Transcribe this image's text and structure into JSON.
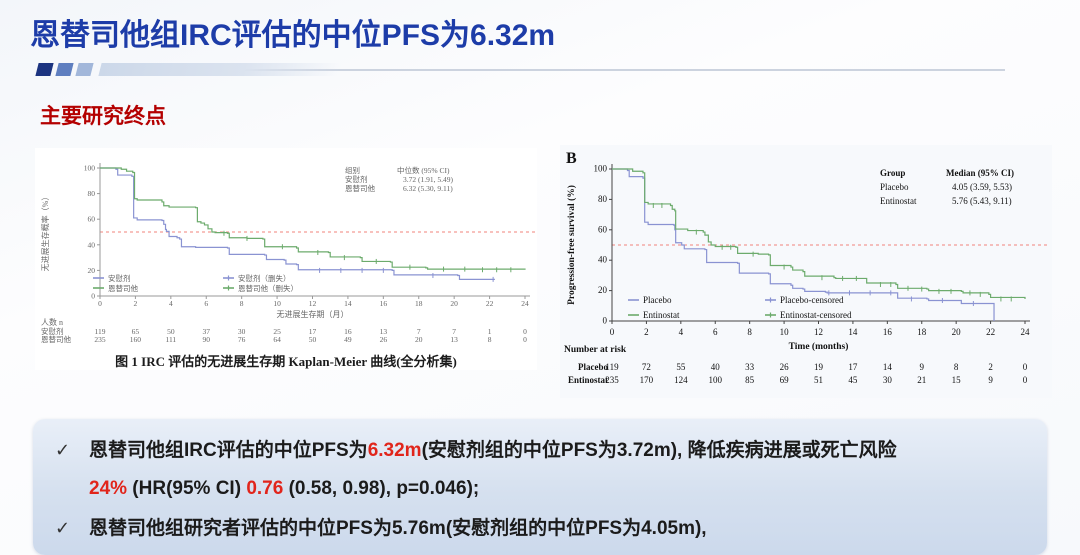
{
  "slide": {
    "title": "恩替司他组IRC评估的中位PFS为6.32m",
    "section_heading": "主要研究终点"
  },
  "colors": {
    "title_blue": "#1d3ca8",
    "heading_red": "#b40000",
    "highlight_red": "#e1251b",
    "decor_dark": "#1c3480",
    "decor_mid": "#5f7fc0",
    "decor_light": "#a2b7da",
    "placebo_blue": "#8a93d2",
    "entinostat_green": "#6cab6c",
    "median_dashed_red": "#f2837b"
  },
  "chart_data": [
    {
      "type": "line",
      "subtype": "kaplan-meier",
      "panel_label": "",
      "caption": "图 1 IRC 评估的无进展生存期 Kaplan-Meier 曲线(全分析集)",
      "xlabel": "无进展生存期（月）",
      "ylabel": "无进展生存概率（%）",
      "xlim": [
        0,
        24
      ],
      "ylim": [
        0,
        100
      ],
      "xticks": [
        0,
        2,
        4,
        6,
        8,
        10,
        12,
        14,
        16,
        18,
        20,
        22,
        24
      ],
      "yticks": [
        0,
        20,
        40,
        60,
        80,
        100
      ],
      "median_line_y": 50,
      "legend_table": {
        "header": [
          "组别",
          "中位数 (95% CI)"
        ],
        "rows": [
          [
            "安慰剂",
            "3.72 (1.91, 5.49)"
          ],
          [
            "恩替司他",
            "6.32 (5.30, 9.11)"
          ]
        ]
      },
      "legend_items": [
        "安慰剂",
        "恩替司他",
        "安慰剂（删失）",
        "恩替司他（删失）"
      ],
      "series": [
        {
          "name": "安慰剂",
          "color": "#8a93d2",
          "steps": [
            [
              0,
              100
            ],
            [
              0.9,
              99
            ],
            [
              1,
              94.5
            ],
            [
              1.8,
              93.5
            ],
            [
              1.9,
              61
            ],
            [
              2.1,
              59.5
            ],
            [
              3.5,
              59
            ],
            [
              3.6,
              56
            ],
            [
              3.7,
              52
            ],
            [
              3.75,
              50.5
            ],
            [
              3.9,
              46.5
            ],
            [
              4.35,
              45.5
            ],
            [
              4.5,
              44.5
            ],
            [
              4.6,
              38.5
            ],
            [
              5.4,
              38
            ],
            [
              7.2,
              37.5
            ],
            [
              7.3,
              32.5
            ],
            [
              9.3,
              32
            ],
            [
              9.4,
              28.5
            ],
            [
              10.4,
              28
            ],
            [
              10.5,
              25
            ],
            [
              11.1,
              24.5
            ],
            [
              11.2,
              20.5
            ],
            [
              16.5,
              20
            ],
            [
              16.6,
              16.5
            ],
            [
              20.2,
              16
            ],
            [
              20.3,
              13
            ],
            [
              22.3,
              13
            ]
          ],
          "censors": [
            [
              12.4,
              20
            ],
            [
              13.6,
              20
            ],
            [
              14.8,
              20
            ],
            [
              16,
              20
            ],
            [
              18.8,
              16
            ],
            [
              22.2,
              13
            ]
          ]
        },
        {
          "name": "恩替司他",
          "color": "#6cab6c",
          "steps": [
            [
              0,
              100
            ],
            [
              1.2,
              99
            ],
            [
              1.5,
              97.5
            ],
            [
              1.85,
              96.5
            ],
            [
              1.95,
              76
            ],
            [
              2.1,
              75
            ],
            [
              3.5,
              73.5
            ],
            [
              3.6,
              70.5
            ],
            [
              3.9,
              69.5
            ],
            [
              5.4,
              69
            ],
            [
              5.5,
              58
            ],
            [
              5.7,
              57
            ],
            [
              5.9,
              55.5
            ],
            [
              6.1,
              52.5
            ],
            [
              6.32,
              50
            ],
            [
              6.5,
              49.5
            ],
            [
              7.2,
              49
            ],
            [
              7.3,
              45.5
            ],
            [
              8.3,
              45
            ],
            [
              9.2,
              44.5
            ],
            [
              9.3,
              38.5
            ],
            [
              11.1,
              37.5
            ],
            [
              11.2,
              34.5
            ],
            [
              12.9,
              34
            ],
            [
              13,
              30.5
            ],
            [
              14.7,
              30
            ],
            [
              14.8,
              27
            ],
            [
              16.4,
              26.5
            ],
            [
              16.5,
              22.5
            ],
            [
              18.4,
              22
            ],
            [
              18.5,
              21
            ],
            [
              24,
              20.5
            ]
          ],
          "censors": [
            [
              7,
              49
            ],
            [
              8.3,
              45
            ],
            [
              10.3,
              38.5
            ],
            [
              12.3,
              34
            ],
            [
              13.8,
              30
            ],
            [
              15.6,
              27
            ],
            [
              17.5,
              22.5
            ],
            [
              19.4,
              21
            ],
            [
              20.6,
              21
            ],
            [
              21.6,
              20.5
            ],
            [
              22.4,
              20.5
            ],
            [
              23.2,
              20.5
            ]
          ]
        }
      ],
      "at_risk": {
        "label": "人数 n",
        "rows": [
          {
            "name": "安慰剂",
            "values": [
              119,
              65,
              50,
              37,
              30,
              25,
              17,
              16,
              13,
              7,
              7,
              1,
              0
            ]
          },
          {
            "name": "恩替司他",
            "values": [
              235,
              160,
              111,
              90,
              76,
              64,
              50,
              49,
              26,
              20,
              13,
              8,
              0
            ]
          }
        ]
      }
    },
    {
      "type": "line",
      "subtype": "kaplan-meier",
      "panel_label": "B",
      "caption": "",
      "xlabel": "Time (months)",
      "ylabel": "Progression-free survival (%)",
      "xlim": [
        0,
        24
      ],
      "ylim": [
        0,
        100
      ],
      "xticks": [
        0,
        2,
        4,
        6,
        8,
        10,
        12,
        14,
        16,
        18,
        20,
        22,
        24
      ],
      "yticks": [
        0,
        20,
        40,
        60,
        80,
        100
      ],
      "median_line_y": 50,
      "legend_table": {
        "header": [
          "Group",
          "Median (95% CI)"
        ],
        "rows": [
          [
            "Placebo",
            "4.05 (3.59, 5.53)"
          ],
          [
            "Entinostat",
            "5.76 (5.43, 9.11)"
          ]
        ]
      },
      "legend_items": [
        "Placebo",
        "Entinostat",
        "Placebo-censored",
        "Entinostat-censored"
      ],
      "series": [
        {
          "name": "Placebo",
          "color": "#8a93d2",
          "steps": [
            [
              0,
              100
            ],
            [
              0.9,
              99
            ],
            [
              1,
              95
            ],
            [
              1.8,
              94
            ],
            [
              1.9,
              65
            ],
            [
              2.1,
              63.5
            ],
            [
              3.6,
              63
            ],
            [
              3.65,
              60
            ],
            [
              3.7,
              51.5
            ],
            [
              4.05,
              50
            ],
            [
              4.2,
              47.5
            ],
            [
              5.4,
              47
            ],
            [
              5.5,
              38.5
            ],
            [
              7.3,
              38
            ],
            [
              7.4,
              31.5
            ],
            [
              9.1,
              31
            ],
            [
              9.2,
              24.5
            ],
            [
              10.4,
              23.5
            ],
            [
              10.5,
              21.5
            ],
            [
              11.1,
              21
            ],
            [
              11.2,
              19.5
            ],
            [
              12.4,
              19
            ],
            [
              12.5,
              18.5
            ],
            [
              16.5,
              18.5
            ],
            [
              16.6,
              15
            ],
            [
              18.3,
              14.5
            ],
            [
              18.4,
              13.5
            ],
            [
              20.2,
              13.5
            ],
            [
              20.3,
              11.5
            ],
            [
              22.1,
              11.5
            ],
            [
              22.2,
              0
            ]
          ],
          "censors": [
            [
              12.6,
              18.5
            ],
            [
              13.8,
              18.5
            ],
            [
              15,
              18.5
            ],
            [
              16.2,
              18.5
            ],
            [
              17.4,
              14.5
            ],
            [
              19.2,
              13.5
            ],
            [
              21,
              11.5
            ]
          ]
        },
        {
          "name": "Entinostat",
          "color": "#6cab6c",
          "steps": [
            [
              0,
              100
            ],
            [
              1.2,
              98.5
            ],
            [
              1.8,
              97.5
            ],
            [
              1.9,
              78
            ],
            [
              2.1,
              77
            ],
            [
              3.4,
              76
            ],
            [
              3.5,
              73.5
            ],
            [
              3.65,
              72.5
            ],
            [
              3.7,
              60.5
            ],
            [
              4.4,
              59.5
            ],
            [
              5.3,
              58.5
            ],
            [
              5.4,
              56.5
            ],
            [
              5.6,
              52
            ],
            [
              5.76,
              50
            ],
            [
              6,
              49
            ],
            [
              7.2,
              48.5
            ],
            [
              7.3,
              44.5
            ],
            [
              8.5,
              44
            ],
            [
              9.1,
              43.5
            ],
            [
              9.2,
              36.5
            ],
            [
              10.4,
              35.5
            ],
            [
              10.5,
              33.5
            ],
            [
              11.1,
              32.5
            ],
            [
              11.2,
              29.5
            ],
            [
              12.9,
              28.5
            ],
            [
              13,
              28
            ],
            [
              14.7,
              28
            ],
            [
              14.8,
              25
            ],
            [
              16.5,
              24
            ],
            [
              16.6,
              21.5
            ],
            [
              18.3,
              21
            ],
            [
              18.4,
              20
            ],
            [
              20.3,
              19.5
            ],
            [
              20.4,
              18.5
            ],
            [
              21.9,
              17.5
            ],
            [
              22,
              15.5
            ],
            [
              24,
              14.5
            ]
          ],
          "censors": [
            [
              2.4,
              76
            ],
            [
              2.9,
              76
            ],
            [
              4.9,
              58.5
            ],
            [
              6.4,
              48.5
            ],
            [
              6.9,
              48.5
            ],
            [
              8.2,
              44
            ],
            [
              10,
              35.5
            ],
            [
              12.2,
              28.5
            ],
            [
              13.4,
              28
            ],
            [
              14.2,
              28
            ],
            [
              15.6,
              24
            ],
            [
              16.2,
              24
            ],
            [
              17.2,
              21.5
            ],
            [
              18,
              21
            ],
            [
              19,
              19.5
            ],
            [
              19.7,
              19.5
            ],
            [
              20.8,
              18.5
            ],
            [
              21.4,
              17.5
            ],
            [
              22.6,
              14.5
            ],
            [
              23.2,
              14.5
            ]
          ]
        }
      ],
      "at_risk": {
        "label": "Number at risk",
        "rows": [
          {
            "name": "Placebo",
            "values": [
              119,
              72,
              55,
              40,
              33,
              26,
              19,
              17,
              14,
              9,
              8,
              2,
              0
            ]
          },
          {
            "name": "Entinostat",
            "values": [
              235,
              170,
              124,
              100,
              85,
              69,
              51,
              45,
              30,
              21,
              15,
              9,
              0
            ]
          }
        ]
      }
    }
  ],
  "summary": {
    "check": "✓",
    "bullet1": {
      "p1": "恩替司他组IRC评估的中位PFS为",
      "p2": "6.32m",
      "p3": "(安慰剂组的中位PFS为3.72m), 降低疾病进展或死亡风险",
      "p4": "24%",
      "p5": "  (HR(95% CI) ",
      "p6": "0.76",
      "p7": " (0.58, 0.98), p=0.046);"
    },
    "bullet2": "恩替司他组研究者评估的中位PFS为5.76m(安慰剂组的中位PFS为4.05m),"
  }
}
